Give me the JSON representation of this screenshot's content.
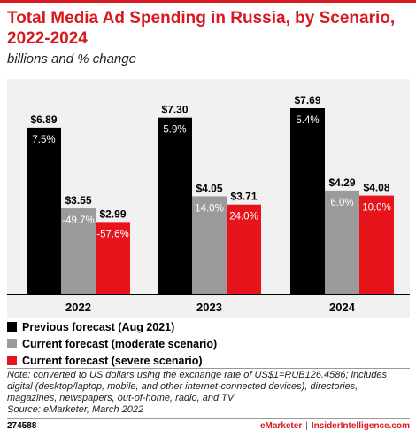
{
  "header": {
    "title": "Total Media Ad Spending in Russia, by Scenario, 2022-2024",
    "subtitle": "billions and % change"
  },
  "colors": {
    "previous": "#000000",
    "moderate": "#9b9b9b",
    "severe": "#e8141c",
    "accent": "#d71920"
  },
  "chart_data": {
    "type": "bar",
    "categories": [
      "2022",
      "2023",
      "2024"
    ],
    "series": [
      {
        "name": "Previous forecast (Aug 2021)",
        "values": [
          6.89,
          7.3,
          7.69
        ],
        "value_labels": [
          "$6.89",
          "$7.30",
          "$7.69"
        ],
        "change_labels": [
          "7.5%",
          "5.9%",
          "5.4%"
        ]
      },
      {
        "name": "Current forecast (moderate scenario)",
        "values": [
          3.55,
          4.05,
          4.29
        ],
        "value_labels": [
          "$3.55",
          "$4.05",
          "$4.29"
        ],
        "change_labels": [
          "-49.7%",
          "14.0%",
          "6.0%"
        ]
      },
      {
        "name": "Current forecast (severe scenario)",
        "values": [
          2.99,
          3.71,
          4.08
        ],
        "value_labels": [
          "$2.99",
          "$3.71",
          "$4.08"
        ],
        "change_labels": [
          "-57.6%",
          "24.0%",
          "10.0%"
        ]
      }
    ],
    "ylim": [
      0,
      8.9
    ],
    "grid": false,
    "legend_position": "bottom-left"
  },
  "notes": {
    "note": "Note: converted to US dollars using the exchange rate of US$1=RUB126.4586; includes digital (desktop/laptop, mobile, and other internet-connected devices), directories, magazines, newspapers, out-of-home, radio, and TV",
    "source": "Source: eMarketer, March 2022"
  },
  "footer": {
    "chart_id": "274588",
    "brand_a": "eMarketer",
    "separator": "|",
    "brand_b": "InsiderIntelligence.com"
  }
}
